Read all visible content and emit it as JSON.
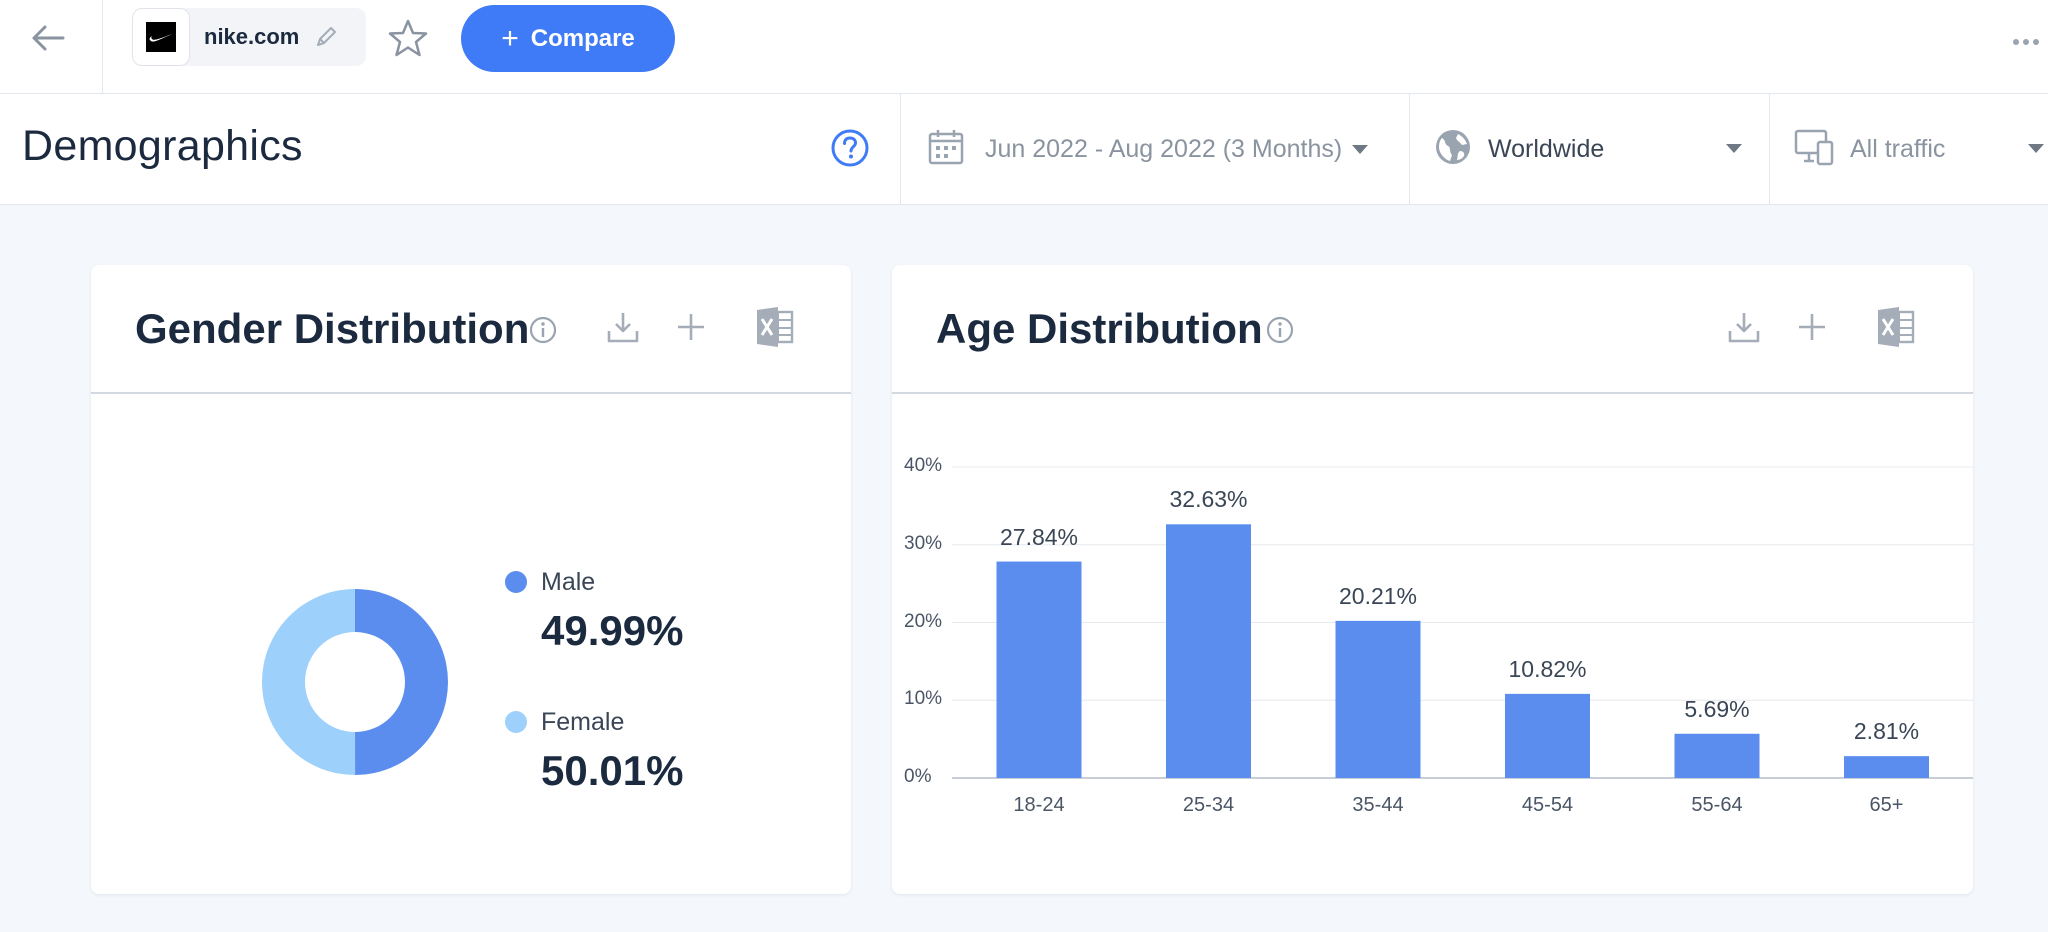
{
  "header": {
    "site": "nike.com",
    "compare_label": "Compare"
  },
  "subheader": {
    "title": "Demographics",
    "date_range": "Jun 2022 - Aug 2022 (3 Months)",
    "region": "Worldwide",
    "traffic": "All traffic"
  },
  "gender": {
    "title": "Gender Distribution",
    "items": [
      {
        "label": "Male",
        "value": "49.99%",
        "color": "#5b8def"
      },
      {
        "label": "Female",
        "value": "50.01%",
        "color": "#9dd0fb"
      }
    ]
  },
  "age": {
    "title": "Age Distribution",
    "y_ticks": [
      "40%",
      "30%",
      "20%",
      "10%",
      "0%"
    ],
    "bar_labels": [
      "27.84%",
      "32.63%",
      "20.21%",
      "10.82%",
      "5.69%",
      "2.81%"
    ],
    "categories": [
      "18-24",
      "25-34",
      "35-44",
      "45-54",
      "55-64",
      "65+"
    ]
  },
  "chart_data": [
    {
      "type": "pie",
      "categories": [
        "Male",
        "Female"
      ],
      "values": [
        49.99,
        50.01
      ],
      "colors": [
        "#5b8def",
        "#9dd0fb"
      ],
      "title": "Gender Distribution"
    },
    {
      "type": "bar",
      "categories": [
        "18-24",
        "25-34",
        "35-44",
        "45-54",
        "55-64",
        "65+"
      ],
      "values": [
        27.84,
        32.63,
        20.21,
        10.82,
        5.69,
        2.81
      ],
      "title": "Age Distribution",
      "ylim": [
        0,
        40
      ],
      "y_ticks": [
        0,
        10,
        20,
        30,
        40
      ],
      "grid": true,
      "bar_color": "#5b8def"
    }
  ]
}
